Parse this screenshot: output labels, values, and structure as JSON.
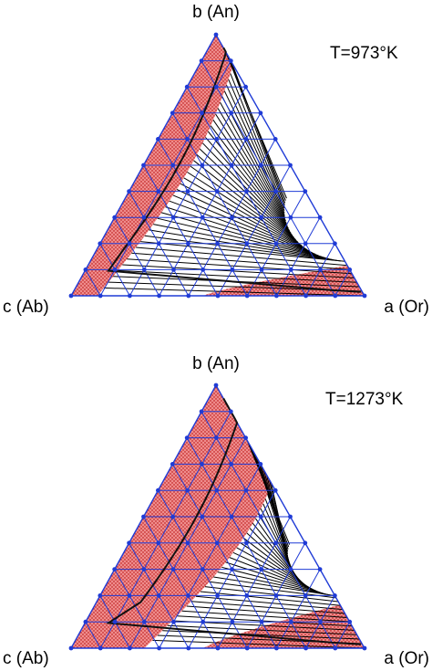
{
  "diagrams": [
    {
      "temperature_label": "T=973°K",
      "vertex_top": "b (An)",
      "vertex_left": "c (Ab)",
      "vertex_right": "a (Or)"
    },
    {
      "temperature_label": "T=1273°K",
      "vertex_top": "b (An)",
      "vertex_left": "c (Ab)",
      "vertex_right": "a (Or)"
    }
  ],
  "colors": {
    "grid": "#1f3bd6",
    "grid_node": "#1f3bd6",
    "stable_region": "#e98181",
    "stipple": "#b00000",
    "tie_line": "#000000",
    "binodal": "#111111"
  }
}
